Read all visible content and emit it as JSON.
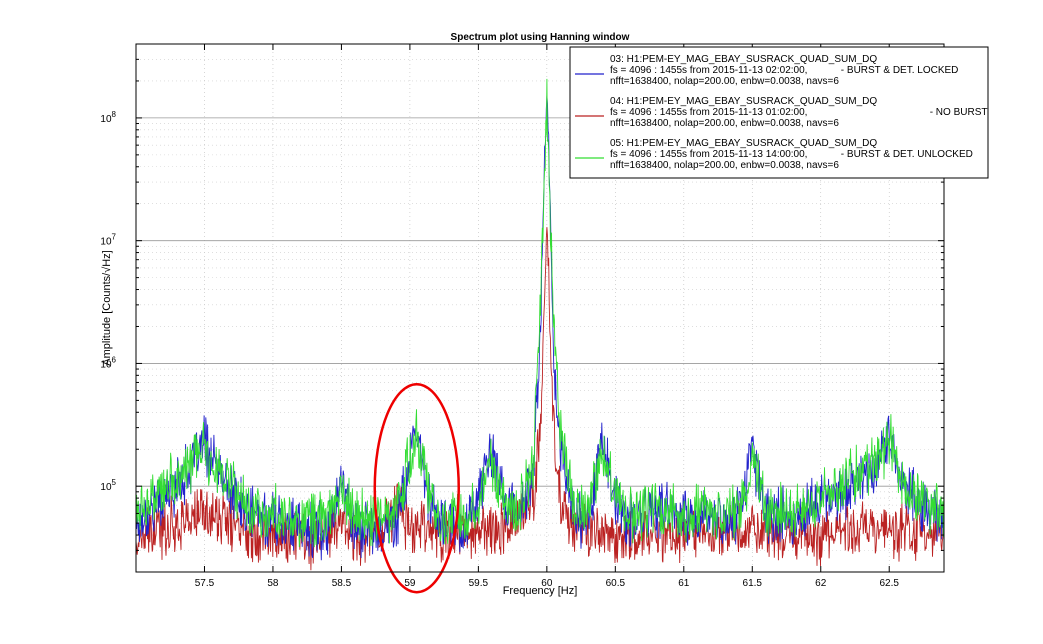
{
  "chart_data": {
    "type": "line",
    "title": "Spectrum plot using Hanning window",
    "xlabel": "Frequency [Hz]",
    "ylabel": "Amplitude [Counts/√Hz]",
    "xlim": [
      57.0,
      62.9
    ],
    "ylim": [
      20000,
      400000000
    ],
    "yscale": "log",
    "grid": true,
    "legend_position": "top-right",
    "x_ticks": [
      "57.5",
      "58",
      "58.5",
      "59",
      "59.5",
      "60",
      "60.5",
      "61",
      "61.5",
      "62",
      "62.5"
    ],
    "y_ticks": [
      {
        "base": "10",
        "exp": "5"
      },
      {
        "base": "10",
        "exp": "6"
      },
      {
        "base": "10",
        "exp": "7"
      },
      {
        "base": "10",
        "exp": "8"
      }
    ],
    "series": [
      {
        "name": "03: H1:PEM-EY_MAG_EBAY_SUSRACK_QUAD_SUM_DQ",
        "detail_line1": "fs = 4096 : 1455s from 2015-11-13 02:02:00,            - BURST & DET. LOCKED",
        "detail_line2": "nfft=1638400, nolap=200.00, enbw=0.0038, navs=6",
        "color": "#2222cc",
        "x": [
          57.0,
          57.2,
          57.4,
          57.5,
          57.6,
          57.8,
          58.0,
          58.2,
          58.4,
          58.5,
          58.6,
          58.8,
          58.9,
          59.0,
          59.05,
          59.1,
          59.2,
          59.4,
          59.5,
          59.6,
          59.7,
          59.8,
          59.9,
          59.95,
          60.0,
          60.05,
          60.1,
          60.2,
          60.3,
          60.4,
          60.5,
          60.6,
          60.8,
          61.0,
          61.2,
          61.4,
          61.5,
          61.6,
          61.8,
          62.0,
          62.2,
          62.4,
          62.5,
          62.6,
          62.8,
          62.9
        ],
        "y": [
          50000,
          80000,
          140000,
          230000,
          130000,
          60000,
          55000,
          45000,
          45000,
          110000,
          45000,
          45000,
          50000,
          150000,
          280000,
          130000,
          50000,
          45000,
          90000,
          180000,
          70000,
          60000,
          120000,
          1500000,
          200000000,
          1200000,
          200000,
          60000,
          50000,
          260000,
          70000,
          50000,
          65000,
          55000,
          55000,
          60000,
          200000,
          60000,
          55000,
          75000,
          100000,
          150000,
          260000,
          100000,
          60000,
          60000
        ]
      },
      {
        "name": "04: H1:PEM-EY_MAG_EBAY_SUSRACK_QUAD_SUM_DQ",
        "detail_line1": "fs = 4096 : 1455s from 2015-11-13 01:02:00,                                            - NO BURST",
        "detail_line2": "nfft=1638400, nolap=200.00, enbw=0.0038, navs=6",
        "color": "#bb2222",
        "x": [
          57.0,
          57.2,
          57.4,
          57.5,
          57.6,
          57.8,
          58.0,
          58.2,
          58.4,
          58.5,
          58.6,
          58.8,
          58.9,
          59.0,
          59.1,
          59.2,
          59.4,
          59.6,
          59.8,
          59.9,
          59.95,
          60.0,
          60.05,
          60.1,
          60.2,
          60.4,
          60.6,
          60.8,
          61.0,
          61.2,
          61.4,
          61.6,
          61.8,
          62.0,
          62.2,
          62.4,
          62.6,
          62.8,
          62.9
        ],
        "y": [
          35000,
          45000,
          55000,
          60000,
          55000,
          45000,
          40000,
          38000,
          38000,
          55000,
          38000,
          45000,
          75000,
          45000,
          55000,
          40000,
          40000,
          45000,
          55000,
          80000,
          250000,
          12000000,
          300000,
          70000,
          45000,
          40000,
          38000,
          40000,
          42000,
          40000,
          40000,
          45000,
          42000,
          40000,
          45000,
          45000,
          42000,
          42000,
          40000
        ]
      },
      {
        "name": "05: H1:PEM-EY_MAG_EBAY_SUSRACK_QUAD_SUM_DQ",
        "detail_line1": "fs = 4096 : 1455s from 2015-11-13 14:00:00,            - BURST & DET. UNLOCKED",
        "detail_line2": "nfft=1638400, nolap=200.00, enbw=0.0038, navs=6",
        "color": "#33dd33",
        "x": [
          57.0,
          57.2,
          57.4,
          57.5,
          57.6,
          57.8,
          58.0,
          58.2,
          58.4,
          58.5,
          58.6,
          58.8,
          58.9,
          59.0,
          59.05,
          59.1,
          59.2,
          59.4,
          59.5,
          59.6,
          59.7,
          59.8,
          59.9,
          59.95,
          60.0,
          60.05,
          60.1,
          60.2,
          60.3,
          60.4,
          60.5,
          60.6,
          60.8,
          61.0,
          61.2,
          61.4,
          61.5,
          61.6,
          61.8,
          62.0,
          62.2,
          62.4,
          62.5,
          62.6,
          62.8,
          62.9
        ],
        "y": [
          60000,
          90000,
          150000,
          200000,
          140000,
          70000,
          60000,
          55000,
          55000,
          90000,
          55000,
          55000,
          60000,
          180000,
          250000,
          140000,
          55000,
          55000,
          85000,
          160000,
          75000,
          70000,
          140000,
          2500000,
          140000000,
          2000000,
          250000,
          70000,
          60000,
          200000,
          80000,
          60000,
          65000,
          60000,
          60000,
          65000,
          150000,
          65000,
          60000,
          75000,
          110000,
          160000,
          230000,
          110000,
          65000,
          65000
        ]
      }
    ],
    "annotation": {
      "shape": "ellipse",
      "color": "#ee0000",
      "center_x": 59.05,
      "center_y": 100000
    }
  }
}
